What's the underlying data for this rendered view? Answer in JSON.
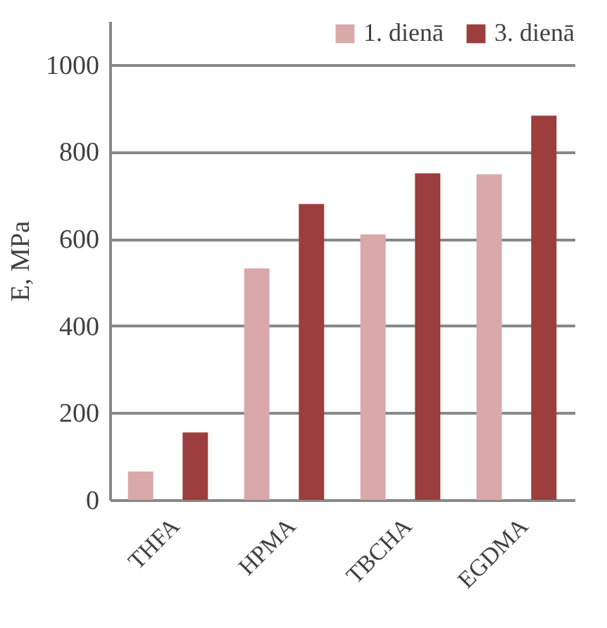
{
  "chart_data": {
    "type": "bar",
    "ylabel": "E, MPa",
    "categories": [
      "THFA",
      "HPMA",
      "TBCHA",
      "EGDMA"
    ],
    "series": [
      {
        "name": "1. dienā",
        "color": "#d9a9a9",
        "values": [
          65,
          532,
          610,
          748
        ]
      },
      {
        "name": "3. dienā",
        "color": "#9c3e3d",
        "values": [
          155,
          680,
          750,
          883
        ]
      }
    ],
    "ylim": [
      0,
      1100
    ],
    "yticks": [
      0,
      200,
      400,
      600,
      800,
      1000
    ],
    "grid": "y",
    "legend": "top right"
  }
}
